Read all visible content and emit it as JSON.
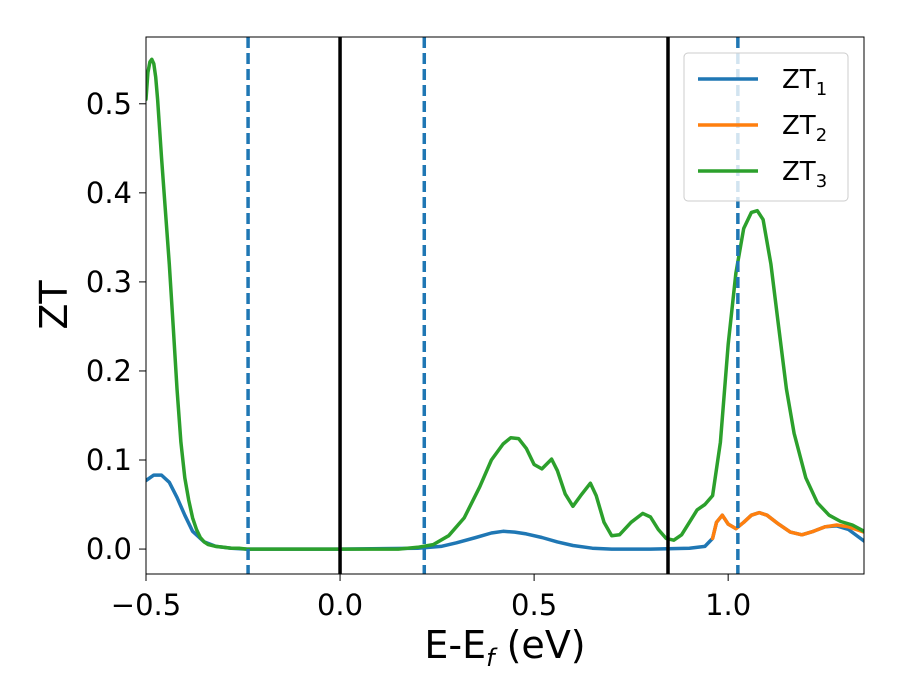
{
  "chart_data": {
    "type": "line",
    "xlabel": "E-E",
    "xlabel_sub": "f",
    "xlabel_unit": " (eV)",
    "ylabel": "ZT",
    "xlim": [
      -0.5,
      1.35
    ],
    "ylim": [
      -0.028,
      0.575
    ],
    "xticks": [
      -0.5,
      0.0,
      0.5,
      1.0
    ],
    "xtick_labels": [
      "−0.5",
      "0.0",
      "0.5",
      "1.0"
    ],
    "yticks": [
      0.0,
      0.1,
      0.2,
      0.3,
      0.4,
      0.5
    ],
    "ytick_labels": [
      "0.0",
      "0.1",
      "0.2",
      "0.3",
      "0.4",
      "0.5"
    ],
    "grid": false,
    "legend_position": "top-right",
    "vlines_solid": [
      0.0,
      0.845
    ],
    "vlines_dashed": [
      -0.237,
      0.217,
      1.025
    ],
    "colors": {
      "ZT1": "#1f77b4",
      "ZT2": "#ff7f0e",
      "ZT3": "#2ca02c",
      "vline": "#000000",
      "dashed": "#1f77b4"
    },
    "series": [
      {
        "name": "ZT",
        "sub": "1",
        "color": "#1f77b4",
        "x": [
          -0.5,
          -0.48,
          -0.46,
          -0.44,
          -0.42,
          -0.4,
          -0.38,
          -0.35,
          -0.32,
          -0.28,
          -0.24,
          -0.2,
          0.0,
          0.2,
          0.26,
          0.3,
          0.35,
          0.39,
          0.42,
          0.45,
          0.48,
          0.52,
          0.56,
          0.6,
          0.65,
          0.7,
          0.8,
          0.9,
          0.94,
          0.96,
          0.97,
          0.985,
          1.0,
          1.02,
          1.04,
          1.06,
          1.08,
          1.1,
          1.13,
          1.16,
          1.19,
          1.22,
          1.25,
          1.28,
          1.31,
          1.35
        ],
        "y": [
          0.077,
          0.083,
          0.083,
          0.075,
          0.058,
          0.038,
          0.02,
          0.008,
          0.003,
          0.001,
          0.0,
          0.0,
          0.0,
          0.001,
          0.003,
          0.007,
          0.013,
          0.018,
          0.02,
          0.019,
          0.017,
          0.013,
          0.008,
          0.004,
          0.001,
          0.0,
          0.0,
          0.001,
          0.003,
          0.012,
          0.03,
          0.038,
          0.028,
          0.023,
          0.03,
          0.038,
          0.041,
          0.038,
          0.028,
          0.019,
          0.016,
          0.02,
          0.025,
          0.026,
          0.022,
          0.009
        ]
      },
      {
        "name": "ZT",
        "sub": "2",
        "color": "#ff7f0e",
        "x": [
          0.96,
          0.97,
          0.985,
          1.0,
          1.02,
          1.04,
          1.06,
          1.08,
          1.1,
          1.13,
          1.16,
          1.19,
          1.22,
          1.25,
          1.28,
          1.31,
          1.35
        ],
        "y": [
          0.012,
          0.03,
          0.038,
          0.028,
          0.023,
          0.03,
          0.038,
          0.041,
          0.038,
          0.028,
          0.019,
          0.016,
          0.02,
          0.025,
          0.027,
          0.025,
          0.019
        ]
      },
      {
        "name": "ZT",
        "sub": "3",
        "color": "#2ca02c",
        "x": [
          -0.5,
          -0.495,
          -0.49,
          -0.485,
          -0.48,
          -0.475,
          -0.47,
          -0.46,
          -0.45,
          -0.44,
          -0.43,
          -0.42,
          -0.41,
          -0.4,
          -0.39,
          -0.38,
          -0.37,
          -0.36,
          -0.35,
          -0.34,
          -0.32,
          -0.3,
          -0.28,
          -0.26,
          -0.24,
          -0.22,
          -0.2,
          0.0,
          0.15,
          0.2,
          0.24,
          0.28,
          0.32,
          0.36,
          0.39,
          0.42,
          0.44,
          0.46,
          0.48,
          0.5,
          0.52,
          0.545,
          0.56,
          0.58,
          0.6,
          0.62,
          0.645,
          0.66,
          0.68,
          0.7,
          0.72,
          0.75,
          0.78,
          0.8,
          0.82,
          0.84,
          0.86,
          0.88,
          0.9,
          0.92,
          0.94,
          0.96,
          0.98,
          1.0,
          1.02,
          1.04,
          1.06,
          1.075,
          1.09,
          1.11,
          1.13,
          1.15,
          1.17,
          1.2,
          1.23,
          1.26,
          1.29,
          1.32,
          1.35
        ],
        "y": [
          0.505,
          0.535,
          0.547,
          0.55,
          0.545,
          0.53,
          0.505,
          0.44,
          0.38,
          0.32,
          0.25,
          0.18,
          0.12,
          0.08,
          0.055,
          0.035,
          0.022,
          0.013,
          0.008,
          0.005,
          0.003,
          0.002,
          0.001,
          0.001,
          0.0,
          0.0,
          0.0,
          0.0,
          0.0,
          0.002,
          0.005,
          0.015,
          0.035,
          0.07,
          0.1,
          0.118,
          0.125,
          0.124,
          0.113,
          0.095,
          0.09,
          0.101,
          0.088,
          0.062,
          0.048,
          0.06,
          0.074,
          0.06,
          0.03,
          0.015,
          0.016,
          0.03,
          0.04,
          0.036,
          0.022,
          0.012,
          0.01,
          0.016,
          0.03,
          0.044,
          0.05,
          0.06,
          0.12,
          0.23,
          0.31,
          0.36,
          0.378,
          0.38,
          0.37,
          0.32,
          0.25,
          0.18,
          0.13,
          0.08,
          0.052,
          0.038,
          0.031,
          0.027,
          0.02
        ]
      }
    ]
  }
}
